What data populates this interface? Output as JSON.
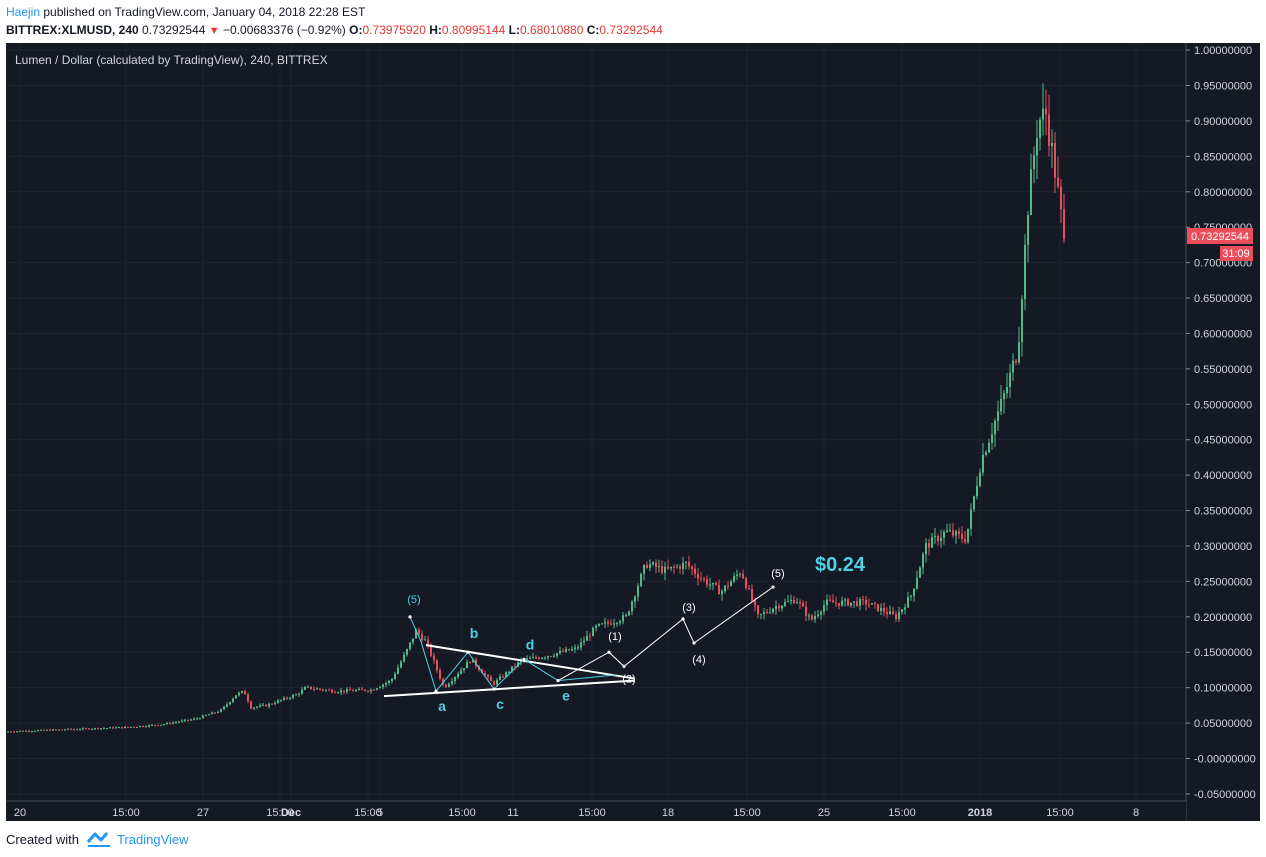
{
  "header": {
    "author": "Haejin",
    "published_text": "published on TradingView.com, January 04, 2018 22:28 EST",
    "symbol": "BITTREX:XLMUSD, 240",
    "last_price": "0.73292544",
    "change": "−0.00683376 (−0.92%)",
    "open_label": "O:",
    "open_value": "0.73975920",
    "high_label": "H:",
    "high_value": "0.80995144",
    "low_label": "L:",
    "low_value": "0.68010880",
    "close_label": "C:",
    "close_value": "0.73292544"
  },
  "footer": {
    "created_with": "Created with",
    "brand": "TradingView"
  },
  "colors": {
    "background": "#151924",
    "grid": "#1f2432",
    "up": "#53b987",
    "down": "#eb4d5c",
    "accent": "#2196f3",
    "cyan": "#4dd0e1",
    "white": "#ffffff"
  },
  "chart_data": {
    "type": "candlestick",
    "title": "Lumen / Dollar (calculated by TradingView), 240, BITTREX",
    "ylim": [
      -0.06,
      1.01
    ],
    "y_ticks": [
      "1.00000000",
      "0.95000000",
      "0.90000000",
      "0.85000000",
      "0.80000000",
      "0.75000000",
      "0.70000000",
      "0.65000000",
      "0.60000000",
      "0.55000000",
      "0.50000000",
      "0.45000000",
      "0.40000000",
      "0.35000000",
      "0.30000000",
      "0.25000000",
      "0.20000000",
      "0.15000000",
      "0.10000000",
      "0.05000000",
      "-0.00000000",
      "-0.05000000"
    ],
    "x_ticks": [
      "20",
      "15:00",
      "27",
      "15:00",
      "Dec",
      "15:00",
      "5",
      "15:00",
      "11",
      "15:00",
      "18",
      "15:00",
      "25",
      "15:00",
      "2018",
      "15:00",
      "8"
    ],
    "bold_x_ticks": [
      "Dec",
      "2018"
    ],
    "price_label": "0.73292544",
    "countdown_label": "31:09",
    "last_close": 0.733,
    "anchors": [
      [
        0,
        0.038
      ],
      [
        40,
        0.04
      ],
      [
        80,
        0.042
      ],
      [
        120,
        0.044
      ],
      [
        155,
        0.048
      ],
      [
        190,
        0.056
      ],
      [
        215,
        0.068
      ],
      [
        230,
        0.09
      ],
      [
        238,
        0.095
      ],
      [
        245,
        0.072
      ],
      [
        260,
        0.075
      ],
      [
        290,
        0.09
      ],
      [
        300,
        0.1
      ],
      [
        330,
        0.095
      ],
      [
        365,
        0.097
      ],
      [
        385,
        0.11
      ],
      [
        400,
        0.15
      ],
      [
        410,
        0.18
      ],
      [
        420,
        0.165
      ],
      [
        438,
        0.1
      ],
      [
        465,
        0.14
      ],
      [
        487,
        0.105
      ],
      [
        515,
        0.138
      ],
      [
        540,
        0.145
      ],
      [
        570,
        0.155
      ],
      [
        590,
        0.185
      ],
      [
        620,
        0.2
      ],
      [
        640,
        0.275
      ],
      [
        660,
        0.265
      ],
      [
        680,
        0.275
      ],
      [
        695,
        0.255
      ],
      [
        715,
        0.235
      ],
      [
        735,
        0.265
      ],
      [
        752,
        0.2
      ],
      [
        770,
        0.215
      ],
      [
        790,
        0.225
      ],
      [
        805,
        0.195
      ],
      [
        820,
        0.22
      ],
      [
        860,
        0.22
      ],
      [
        890,
        0.2
      ],
      [
        905,
        0.23
      ],
      [
        920,
        0.3
      ],
      [
        940,
        0.32
      ],
      [
        960,
        0.31
      ],
      [
        975,
        0.42
      ],
      [
        985,
        0.46
      ],
      [
        1000,
        0.52
      ],
      [
        1012,
        0.58
      ],
      [
        1022,
        0.78
      ],
      [
        1032,
        0.9
      ],
      [
        1040,
        0.91
      ],
      [
        1048,
        0.84
      ],
      [
        1058,
        0.733
      ]
    ],
    "x_range": [
      0,
      1180
    ],
    "annotations": [
      {
        "label": "(5)",
        "value": 0.2,
        "x": 410,
        "color": "cyan"
      },
      {
        "label": "a",
        "value": 0.095,
        "x": 436,
        "color": "cyan"
      },
      {
        "label": "b",
        "value": 0.15,
        "x": 468,
        "color": "cyan"
      },
      {
        "label": "c",
        "value": 0.098,
        "x": 494,
        "color": "cyan"
      },
      {
        "label": "d",
        "value": 0.14,
        "x": 524,
        "color": "cyan"
      },
      {
        "label": "e",
        "value": 0.11,
        "x": 560,
        "color": "cyan"
      },
      {
        "label": "(1)",
        "value": 0.15,
        "x": 609,
        "color": "white"
      },
      {
        "label": "(2)",
        "value": 0.13,
        "x": 623,
        "color": "white"
      },
      {
        "label": "(3)",
        "value": 0.197,
        "x": 683,
        "color": "white"
      },
      {
        "label": "(4)",
        "value": 0.163,
        "x": 693,
        "color": "white"
      },
      {
        "label": "(5)",
        "value": 0.242,
        "x": 772,
        "color": "white"
      },
      {
        "label": "$0.24",
        "value": 0.265,
        "x": 834,
        "color": "cyan"
      }
    ]
  }
}
